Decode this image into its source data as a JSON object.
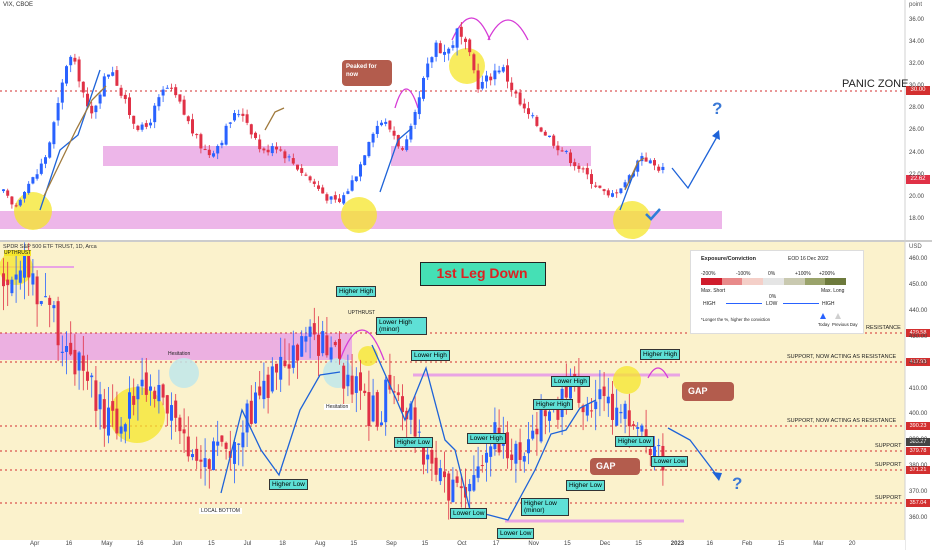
{
  "colors": {
    "up": "#2962ff",
    "down": "#e03146",
    "neutral": "#808080",
    "top_bg": "#ffffff",
    "bottom_bg": "#fbf2cc",
    "pink_zone": "#e9a4e4",
    "yellow_circle": "#f5e62a",
    "dashed_red": "#d32f2f",
    "label_teal": "#5ee0d6",
    "label_green": "#5ee07a",
    "gap_brown": "#b35c4d",
    "arrow_blue": "#1e63d8"
  },
  "top_panel": {
    "symbol": "VIX, CBOE",
    "price_unit": "point",
    "panic_zone_label": "PANIC ZONE",
    "panic_level": "30.00",
    "last_price": "22.62",
    "y_ticks": [
      "36.00",
      "34.00",
      "32.00",
      "30.00",
      "28.00",
      "26.00",
      "24.00",
      "22.00",
      "20.00",
      "18.00"
    ],
    "annotation_peaked": "Peaked for now",
    "question_mark": "?"
  },
  "bottom_panel": {
    "symbol": "SPDR S&P 500 ETF TRUST, 1D, Arca",
    "price_unit": "USD",
    "title_box": "1st Leg Down",
    "y_ticks": [
      "460.00",
      "450.00",
      "440.00",
      "430.00",
      "420.00",
      "410.00",
      "400.00",
      "390.00",
      "380.00",
      "370.00",
      "360.00"
    ],
    "price_tags": {
      "resistance": "429.58",
      "support_resistance_1": "417.93",
      "support_resistance_2": "390.23",
      "last": "383.27",
      "support_1": "379.78",
      "support_2": "371.21",
      "support_3": "357.04"
    },
    "level_labels": {
      "resistance": "RESISTANCE",
      "sr1": "SUPPORT, NOW ACTING AS RESISTANCE",
      "sr2": "SUPPORT, NOW ACTING AS RESISTANCE",
      "support_1": "SUPPORT",
      "support_2": "SUPPORT",
      "support_3": "SUPPORT"
    },
    "annotations": {
      "upthrust_top": "UPTHRUST",
      "higher_high_1": "Higher High",
      "upthrust_mid": "UPTHRUST",
      "lower_high_minor": "Lower High (minor)",
      "hesitation_1": "Hesitation",
      "hesitation_2": "Hesitation",
      "lower_high_1": "Lower High",
      "higher_low_1": "Higher Low",
      "local_bottom": "LOCAL BOTTOM",
      "higher_low_2": "Higher Low",
      "lower_high_2": "Lower High",
      "lower_low_1": "Lower Low",
      "lower_low_2": "Lower Low",
      "higher_low_minor": "Higher Low (minor)",
      "higher_high_2": "Higher High",
      "lower_high_3": "Lower High",
      "higher_low_3": "Higher Low",
      "higher_low_4": "Higher Low",
      "higher_high_3": "Higher High",
      "gap_1": "GAP",
      "gap_2": "GAP",
      "lower_low_3": "Lower Low",
      "question_mark": "?"
    },
    "x_labels": [
      "Apr",
      "16",
      "May",
      "16",
      "Jun",
      "15",
      "Jul",
      "18",
      "Aug",
      "15",
      "Sep",
      "15",
      "Oct",
      "17",
      "Nov",
      "15",
      "Dec",
      "15",
      "2023",
      "16",
      "Feb",
      "15",
      "Mar",
      "20"
    ]
  },
  "legend": {
    "title": "Exposure/Conviction",
    "date": "EOD 16 Dec 2022",
    "scale_labels": [
      "-200%",
      "-100%",
      "0%",
      "+100%",
      "+200%"
    ],
    "max_short": "Max. Short",
    "max_long": "Max. Long",
    "high_left": "HIGH",
    "low_mid": "LOW",
    "high_right": "HIGH",
    "zero_mid": "0%",
    "footnote": "*Longer the %, higher the conviction",
    "today": "Today",
    "previous_day": "Previous Day"
  },
  "chart_data": {
    "type": "candlestick",
    "panels": [
      {
        "name": "VIX, CBOE",
        "ylim": [
          17,
          38
        ],
        "y_ticks": [
          18,
          20,
          22,
          24,
          26,
          28,
          30,
          32,
          34,
          36
        ],
        "close_path": [
          20.5,
          19,
          21,
          22,
          24,
          28,
          33,
          31,
          27,
          30,
          32,
          29,
          27,
          26,
          28,
          30,
          29,
          27,
          25,
          24,
          25,
          27,
          28,
          26,
          24,
          25,
          24,
          23,
          22,
          21,
          20,
          19.5,
          21,
          23,
          26,
          27,
          26,
          24,
          27,
          31,
          34,
          33,
          35,
          33,
          30,
          31,
          32,
          30,
          28,
          27,
          26,
          25,
          24,
          23,
          22,
          21,
          20,
          21,
          22,
          24,
          23,
          22.6
        ]
      },
      {
        "name": "SPDR S&P 500 ETF TRUST, 1D, Arca",
        "ylim": [
          352,
          464
        ],
        "y_ticks": [
          360,
          370,
          380,
          390,
          400,
          410,
          420,
          430,
          440,
          450,
          460
        ],
        "close_path": [
          452,
          458,
          456,
          448,
          440,
          430,
          420,
          412,
          402,
          395,
          398,
          410,
          414,
          408,
          400,
          388,
          378,
          384,
          392,
          388,
          395,
          404,
          412,
          416,
          420,
          426,
          430,
          426,
          420,
          412,
          404,
          400,
          408,
          410,
          400,
          388,
          376,
          370,
          368,
          374,
          384,
          392,
          390,
          384,
          392,
          404,
          402,
          410,
          408,
          406,
          404,
          402,
          398,
          392,
          388,
          383
        ]
      }
    ]
  }
}
